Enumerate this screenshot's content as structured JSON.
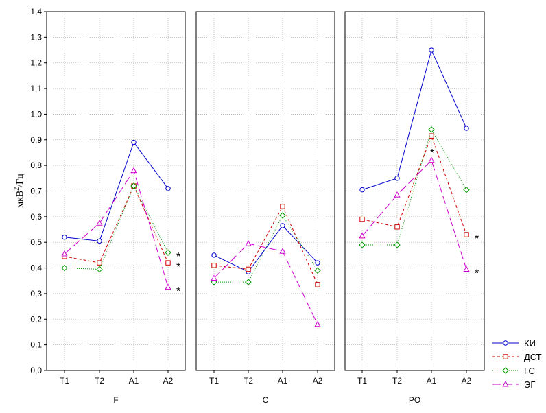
{
  "chart_data": {
    "type": "line",
    "ylabel": "мкВ²/Гц",
    "ylabel_base": "мкВ",
    "ylabel_sup": "2",
    "ylabel_tail": "/Гц",
    "ylim": [
      0,
      1.4
    ],
    "yticks": [
      "0,0",
      "0,1",
      "0,2",
      "0,3",
      "0,4",
      "0,5",
      "0,6",
      "0,7",
      "0,8",
      "0,9",
      "1,0",
      "1,1",
      "1,2",
      "1,3",
      "1,4"
    ],
    "categories": [
      "T1",
      "T2",
      "A1",
      "A2"
    ],
    "grid": true,
    "legend_position": "bottom-right",
    "legend": [
      {
        "name": "КИ",
        "color": "#0000cc",
        "marker": "circle",
        "dash": ""
      },
      {
        "name": "ДСТ",
        "color": "#cc0000",
        "marker": "square",
        "dash": "4,3"
      },
      {
        "name": "ГС",
        "color": "#009900",
        "marker": "diamond",
        "dash": "1,2"
      },
      {
        "name": "ЭГ",
        "color": "#cc00cc",
        "marker": "triangle",
        "dash": "12,5"
      }
    ],
    "panels": [
      {
        "label": "F",
        "series": [
          {
            "values": [
              0.52,
              0.505,
              0.89,
              0.71
            ]
          },
          {
            "values": [
              0.445,
              0.42,
              0.72,
              0.42
            ]
          },
          {
            "values": [
              0.4,
              0.395,
              0.72,
              0.46
            ]
          },
          {
            "values": [
              0.455,
              0.575,
              0.78,
              0.325
            ]
          }
        ],
        "annotations": [
          {
            "text": "*",
            "category": "A2",
            "y": 0.46
          },
          {
            "text": "*",
            "category": "A2",
            "y": 0.42
          },
          {
            "text": "*",
            "category": "A2",
            "y": 0.325
          }
        ]
      },
      {
        "label": "C",
        "series": [
          {
            "values": [
              0.45,
              0.385,
              0.565,
              0.42
            ]
          },
          {
            "values": [
              0.41,
              0.395,
              0.64,
              0.335
            ]
          },
          {
            "values": [
              0.345,
              0.345,
              0.605,
              0.39
            ]
          },
          {
            "values": [
              0.36,
              0.495,
              0.465,
              0.18
            ]
          }
        ],
        "annotations": []
      },
      {
        "label": "PO",
        "series": [
          {
            "values": [
              0.705,
              0.75,
              1.25,
              0.945
            ]
          },
          {
            "values": [
              0.59,
              0.56,
              0.915,
              0.53
            ]
          },
          {
            "values": [
              0.49,
              0.49,
              0.94,
              0.705
            ]
          },
          {
            "values": [
              0.525,
              0.685,
              0.82,
              0.395
            ]
          }
        ],
        "annotations": [
          {
            "text": "*",
            "category": "A1",
            "y": 0.84
          },
          {
            "text": "*",
            "category": "A2",
            "y": 0.53
          },
          {
            "text": "*",
            "category": "A2",
            "y": 0.395
          }
        ]
      }
    ]
  }
}
